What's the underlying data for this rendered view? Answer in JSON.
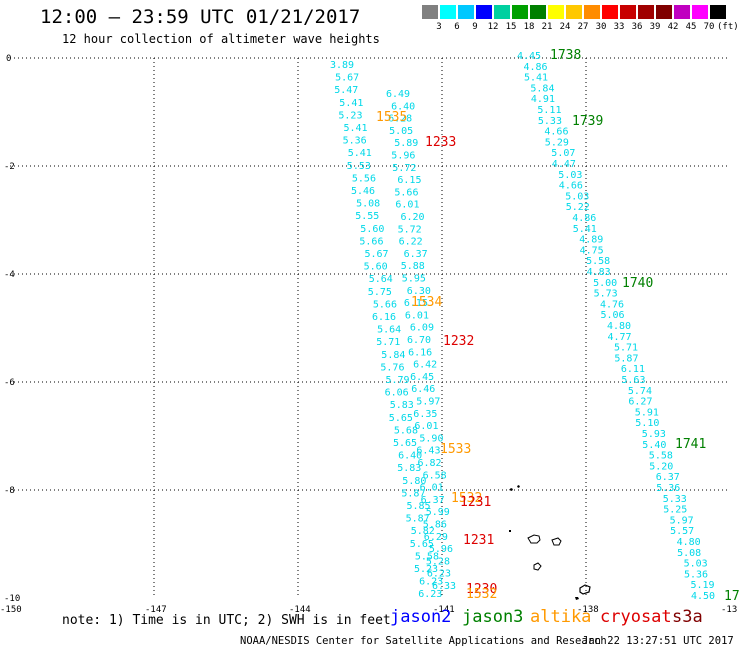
{
  "header": {
    "title": "12:00 – 23:59 UTC 01/21/2017",
    "subtitle": "12 hour collection of altimeter wave heights"
  },
  "colorbar": {
    "colors": [
      "#808080",
      "#00ffff",
      "#00c8ff",
      "#0000ff",
      "#00d0a0",
      "#00a000",
      "#008000",
      "#ffff00",
      "#ffc800",
      "#ff8c00",
      "#ff0000",
      "#c80000",
      "#a00000",
      "#800000",
      "#c000c0",
      "#ff00ff",
      "#000000"
    ],
    "labels": [
      "3",
      "6",
      "9",
      "12",
      "15",
      "18",
      "21",
      "24",
      "27",
      "30",
      "33",
      "36",
      "39",
      "42",
      "45",
      "70",
      "(ft)"
    ]
  },
  "axes": {
    "x_ticks": [
      "-150",
      "-147",
      "-144",
      "-141",
      "-138",
      "-13"
    ],
    "y_ticks": [
      "0",
      "-2",
      "-4",
      "-6",
      "-8",
      "-10"
    ]
  },
  "track_left": {
    "color": "#00d8e8",
    "values": [
      "3.89",
      "5.67",
      "5.47",
      "5.41",
      "5.23",
      "5.41",
      "5.36",
      "5.41",
      "5.53",
      "5.56",
      "5.46",
      "5.08",
      "5.55",
      "5.60",
      "5.66",
      "5.67",
      "5.60",
      "5.64",
      "5.75",
      "5.66",
      "6.16",
      "5.64",
      "5.71",
      "5.84",
      "5.76",
      "5.79",
      "6.06",
      "5.83",
      "5.65",
      "5.68",
      "5.65",
      "6.40",
      "5.83",
      "5.80",
      "5.87",
      "5.85",
      "5.87",
      "5.82",
      "5.65",
      "5.58",
      "5.23",
      "6.23",
      "6.23"
    ]
  },
  "track_mid": {
    "color": "#00d8e8",
    "values": [
      "6.49",
      "6.40",
      "6.28",
      "5.05",
      "5.89",
      "5.96",
      "5.72",
      "6.15",
      "5.66",
      "6.01",
      "6.20",
      "5.72",
      "6.22",
      "6.37",
      "5.88",
      "5.95",
      "6.30",
      "6.15",
      "6.01",
      "6.09",
      "6.70",
      "6.16",
      "6.42",
      "6.45",
      "6.46",
      "5.97",
      "6.35",
      "6.01",
      "5.90",
      "6.43",
      "6.82",
      "6.58",
      "6.01",
      "6.37",
      "5.99",
      "5.86",
      "6.29",
      "5.96",
      "5.28",
      "6.23",
      "6.33"
    ]
  },
  "track_right": {
    "color": "#00d8e8",
    "values": [
      "4.45",
      "4.86",
      "5.41",
      "5.84",
      "4.91",
      "5.11",
      "5.33",
      "4.66",
      "5.29",
      "5.07",
      "4.47",
      "5.03",
      "4.66",
      "5.03",
      "5.22",
      "4.86",
      "5.41",
      "4.89",
      "4.75",
      "5.58",
      "4.83",
      "5.00",
      "5.73",
      "4.76",
      "5.06",
      "4.80",
      "4.77",
      "5.71",
      "5.87",
      "6.11",
      "5.63",
      "5.74",
      "6.27",
      "5.91",
      "5.10",
      "5.93",
      "5.40",
      "5.58",
      "5.20",
      "6.37",
      "5.36",
      "5.33",
      "5.25",
      "5.97",
      "5.57",
      "4.80",
      "5.08",
      "5.03",
      "5.36",
      "5.19",
      "4.50"
    ]
  },
  "time_labels": [
    {
      "text": "1535",
      "color": "#ff9900"
    },
    {
      "text": "1233",
      "color": "#dd0000"
    },
    {
      "text": "1534",
      "color": "#ff9900"
    },
    {
      "text": "1232",
      "color": "#dd0000"
    },
    {
      "text": "1533",
      "color": "#ff9900"
    },
    {
      "text": "1532",
      "color": "#ff9900"
    },
    {
      "text": "1231",
      "color": "#dd0000"
    },
    {
      "text": "1231",
      "color": "#dd0000"
    },
    {
      "text": "1230",
      "color": "#dd0000"
    },
    {
      "text": "1532",
      "color": "#ff9900"
    },
    {
      "text": "1738",
      "color": "#008000"
    },
    {
      "text": "1739",
      "color": "#008000"
    },
    {
      "text": "1740",
      "color": "#008000"
    },
    {
      "text": "1741",
      "color": "#008000"
    },
    {
      "text": "17",
      "color": "#008000"
    }
  ],
  "legend": {
    "note": "note: 1) Time is in UTC; 2) SWH is in feet",
    "jason2": {
      "text": "jason2",
      "color": "#0000ff"
    },
    "jason3": {
      "text": "jason3",
      "color": "#008000"
    },
    "altika": {
      "text": "altika",
      "color": "#ff9900"
    },
    "cryosat": {
      "text": "cryosat",
      "color": "#dd0000"
    },
    "s3a": {
      "text": "s3a",
      "color": "#800000"
    }
  },
  "footer": {
    "credit": "NOAA/NESDIS Center for Satellite Applications and Research",
    "timestamp": "Jan 22 13:27:51 UTC 2017"
  }
}
